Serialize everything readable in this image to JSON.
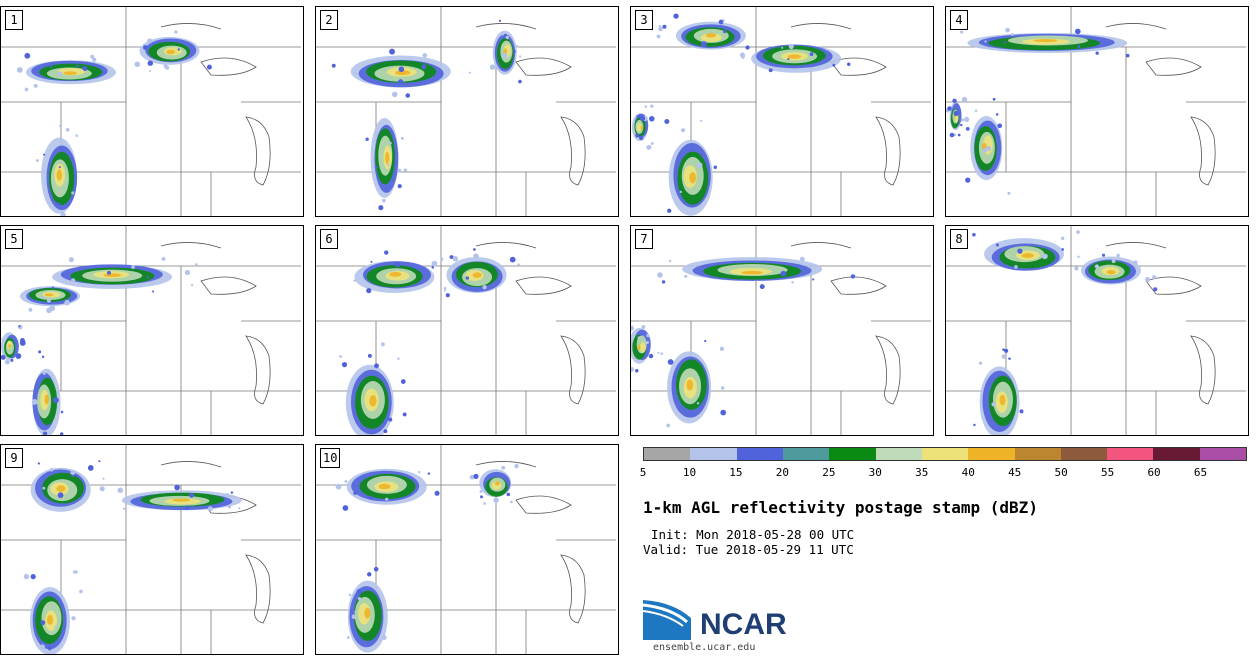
{
  "panels": [
    {
      "label": "1"
    },
    {
      "label": "2"
    },
    {
      "label": "3"
    },
    {
      "label": "4"
    },
    {
      "label": "5"
    },
    {
      "label": "6"
    },
    {
      "label": "7"
    },
    {
      "label": "8"
    },
    {
      "label": "9"
    },
    {
      "label": "10"
    }
  ],
  "colorbar": {
    "colors": [
      "#a6a6a6",
      "#b4c3ea",
      "#5163db",
      "#4e9a9d",
      "#0b8a13",
      "#c0dbb9",
      "#ede27a",
      "#eeb326",
      "#bb862f",
      "#8e5a3c",
      "#f2557e",
      "#681a35",
      "#a94da6"
    ],
    "ticks": [
      "5",
      "10",
      "15",
      "20",
      "25",
      "30",
      "35",
      "40",
      "45",
      "50",
      "55",
      "60",
      "65"
    ]
  },
  "title": "1-km AGL reflectivity postage stamp (dBZ)",
  "init": "Init: Mon 2018-05-28 00 UTC",
  "valid": "Valid: Tue 2018-05-29 11 UTC",
  "logo": {
    "text": "NCAR",
    "url": "ensemble.ucar.edu",
    "color": "#1f3f74"
  }
}
